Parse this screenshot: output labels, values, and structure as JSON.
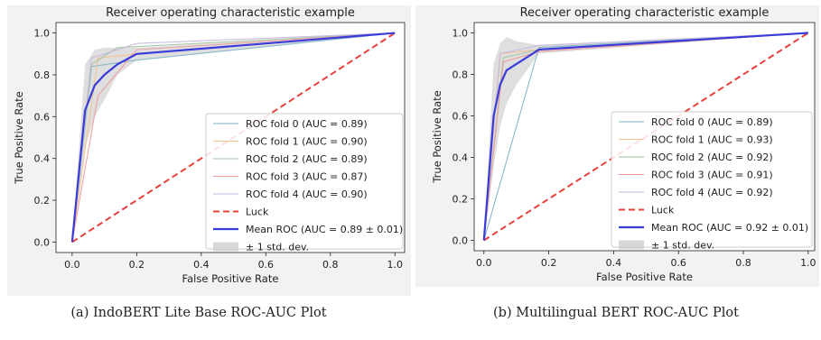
{
  "chart_data": [
    {
      "type": "line",
      "title": "Receiver operating characteristic example",
      "xlabel": "False Positive Rate",
      "ylabel": "True Positive Rate",
      "xlim": [
        -0.05,
        1.03
      ],
      "ylim": [
        -0.05,
        1.05
      ],
      "xticks": [
        "0.0",
        "0.2",
        "0.4",
        "0.6",
        "0.8",
        "1.0"
      ],
      "yticks": [
        "0.0",
        "0.2",
        "0.4",
        "0.6",
        "0.8",
        "1.0"
      ],
      "grid": false,
      "legend_position": "lower-right",
      "series": [
        {
          "name": "ROC fold 0 (AUC = 0.89)",
          "color": "#7fb2c5",
          "x": [
            0,
            0.06,
            0.2,
            1
          ],
          "y": [
            0,
            0.84,
            0.87,
            1
          ]
        },
        {
          "name": "ROC fold 1 (AUC = 0.90)",
          "color": "#f4c08f",
          "x": [
            0,
            0.08,
            0.2,
            1
          ],
          "y": [
            0,
            0.88,
            0.9,
            1
          ]
        },
        {
          "name": "ROC fold 2 (AUC = 0.89)",
          "color": "#9dc39d",
          "x": [
            0,
            0.06,
            0.14,
            1
          ],
          "y": [
            0,
            0.85,
            0.93,
            1
          ]
        },
        {
          "name": "ROC fold 3 (AUC = 0.87)",
          "color": "#ef9a9a",
          "x": [
            0,
            0.08,
            0.2,
            1
          ],
          "y": [
            0,
            0.7,
            0.92,
            1
          ]
        },
        {
          "name": "ROC fold 4 (AUC = 0.90)",
          "color": "#c7b6dc",
          "x": [
            0,
            0.06,
            0.2,
            1
          ],
          "y": [
            0,
            0.88,
            0.95,
            1
          ]
        },
        {
          "name": "Luck",
          "color": "#e8403a",
          "dashed": true,
          "x": [
            0,
            1
          ],
          "y": [
            0,
            1
          ]
        },
        {
          "name": "Mean ROC (AUC = 0.89 ± 0.01)",
          "color": "#3a3bd8",
          "mean": true,
          "x": [
            0,
            0.04,
            0.07,
            0.1,
            0.14,
            0.2,
            1
          ],
          "y": [
            0,
            0.63,
            0.75,
            0.8,
            0.85,
            0.9,
            1
          ]
        },
        {
          "name": "± 1 std. dev.",
          "color": "#c9c9c9",
          "band": true,
          "x": [
            0,
            0.04,
            0.07,
            0.1,
            0.14,
            0.2,
            1
          ],
          "upper": [
            0,
            0.85,
            0.92,
            0.93,
            0.93,
            0.93,
            1
          ],
          "lower": [
            0,
            0.45,
            0.6,
            0.68,
            0.8,
            0.87,
            1
          ]
        }
      ]
    },
    {
      "type": "line",
      "title": "Receiver operating characteristic example",
      "xlabel": "False Positive Rate",
      "ylabel": "True Positive Rate",
      "xlim": [
        -0.03,
        1.02
      ],
      "ylim": [
        -0.05,
        1.05
      ],
      "xticks": [
        "0.0",
        "0.2",
        "0.4",
        "0.6",
        "0.8",
        "1.0"
      ],
      "yticks": [
        "0.0",
        "0.2",
        "0.4",
        "0.6",
        "0.8",
        "1.0"
      ],
      "grid": false,
      "legend_position": "lower-right",
      "series": [
        {
          "name": "ROC fold 0 (AUC = 0.89)",
          "color": "#7fb2c5",
          "x": [
            0,
            0.17,
            1
          ],
          "y": [
            0,
            0.93,
            1
          ]
        },
        {
          "name": "ROC fold 1 (AUC = 0.93)",
          "color": "#f4c08f",
          "x": [
            0,
            0.05,
            0.17,
            1
          ],
          "y": [
            0,
            0.9,
            0.92,
            1
          ]
        },
        {
          "name": "ROC fold 2 (AUC = 0.92)",
          "color": "#9dc39d",
          "x": [
            0,
            0.06,
            0.17,
            1
          ],
          "y": [
            0,
            0.88,
            0.92,
            1
          ]
        },
        {
          "name": "ROC fold 3 (AUC = 0.91)",
          "color": "#ef9a9a",
          "x": [
            0,
            0.06,
            0.17,
            1
          ],
          "y": [
            0,
            0.86,
            0.91,
            1
          ]
        },
        {
          "name": "ROC fold 4 (AUC = 0.92)",
          "color": "#c7b6dc",
          "x": [
            0,
            0.05,
            0.17,
            1
          ],
          "y": [
            0,
            0.9,
            0.94,
            1
          ]
        },
        {
          "name": "Luck",
          "color": "#e8403a",
          "dashed": true,
          "x": [
            0,
            1
          ],
          "y": [
            0,
            1
          ]
        },
        {
          "name": "Mean ROC (AUC = 0.92 ± 0.01)",
          "color": "#3a3bd8",
          "mean": true,
          "x": [
            0,
            0.03,
            0.05,
            0.07,
            0.17,
            1
          ],
          "y": [
            0,
            0.6,
            0.75,
            0.82,
            0.92,
            1
          ]
        },
        {
          "name": "± 1 std. dev.",
          "color": "#c9c9c9",
          "band": true,
          "x": [
            0,
            0.03,
            0.05,
            0.07,
            0.1,
            0.17,
            1
          ],
          "upper": [
            0,
            0.85,
            0.95,
            0.98,
            0.96,
            0.94,
            1
          ],
          "lower": [
            0,
            0.35,
            0.55,
            0.66,
            0.75,
            0.9,
            1
          ]
        }
      ]
    }
  ],
  "captions": {
    "a": "(a) IndoBERT Lite Base ROC-AUC Plot",
    "b": "(b) Multilingual BERT ROC-AUC Plot"
  }
}
